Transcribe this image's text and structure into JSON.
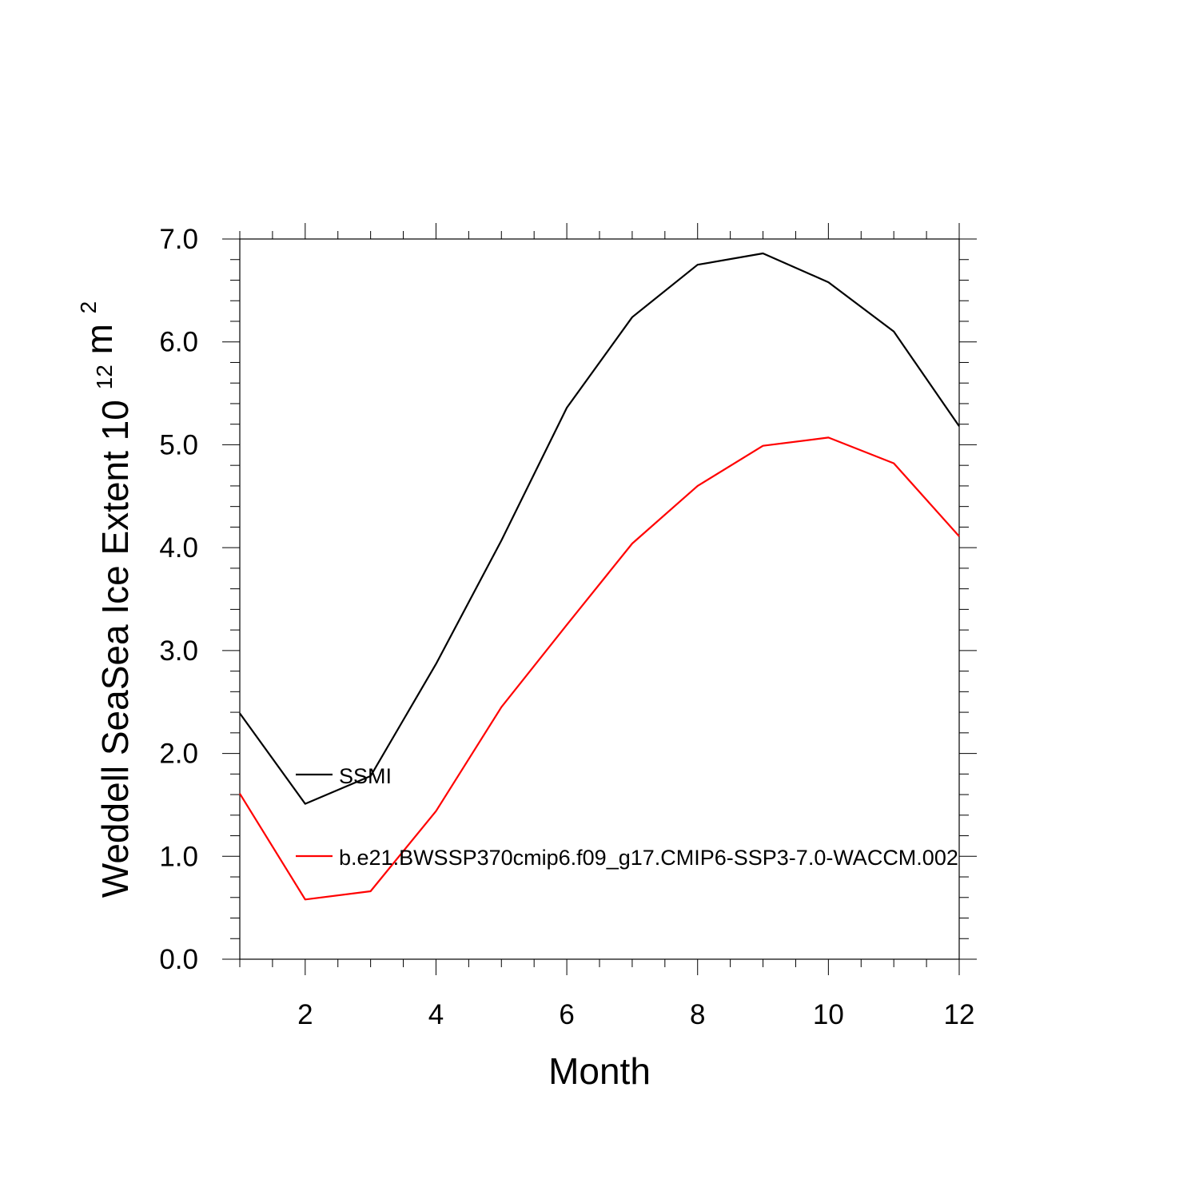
{
  "chart_data": {
    "type": "line",
    "title": "",
    "xlabel": "Month",
    "ylabel": "Weddell SeaSea Ice Extent 10",
    "ylabel_exponent": "12",
    "ylabel_unit": "m",
    "ylabel_unit_exponent": "2",
    "xlim": [
      1,
      12
    ],
    "ylim": [
      0.0,
      7.0
    ],
    "x_ticks": [
      2,
      4,
      6,
      8,
      10,
      12
    ],
    "x_tick_labels": [
      "2",
      "4",
      "6",
      "8",
      "10",
      "12"
    ],
    "y_ticks": [
      0,
      1,
      2,
      3,
      4,
      5,
      6,
      7
    ],
    "y_tick_labels": [
      "0.0",
      "1.0",
      "2.0",
      "3.0",
      "4.0",
      "5.0",
      "6.0",
      "7.0"
    ],
    "x": [
      1,
      2,
      3,
      4,
      5,
      6,
      7,
      8,
      9,
      10,
      11,
      12
    ],
    "series": [
      {
        "name": "SSMI",
        "color": "#000000",
        "values": [
          2.39,
          1.51,
          1.78,
          2.87,
          4.07,
          5.36,
          6.24,
          6.75,
          6.86,
          6.58,
          6.1,
          5.18
        ]
      },
      {
        "name": "b.e21.BWSSP370cmip6.f09_g17.CMIP6-SSP3-7.0-WACCM.002",
        "color": "#ff0000",
        "values": [
          1.61,
          0.58,
          0.66,
          1.44,
          2.45,
          3.25,
          4.04,
          4.6,
          4.99,
          5.07,
          4.82,
          4.11
        ]
      }
    ],
    "grid": false,
    "legend_position": "inside-lower-left"
  }
}
